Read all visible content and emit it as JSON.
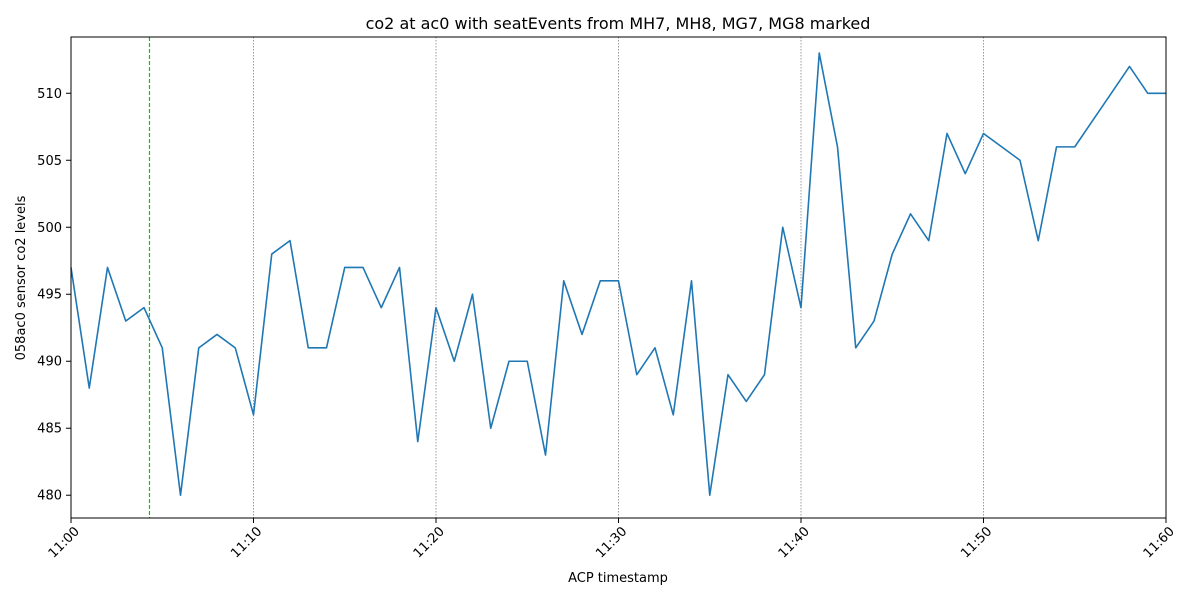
{
  "chart_data": {
    "type": "line",
    "title": "co2 at ac0 with seatEvents from MH7, MH8, MG7, MG8 marked",
    "xlabel": "ACP timestamp",
    "ylabel": "058ac0 sensor co2 levels",
    "xlim": [
      "11:00",
      "11:60"
    ],
    "ylim": [
      478.3,
      514.2
    ],
    "x_ticks": [
      "11:00",
      "11:10",
      "11:20",
      "11:30",
      "11:40",
      "11:50",
      "11:60"
    ],
    "y_ticks": [
      480,
      485,
      490,
      495,
      500,
      505,
      510
    ],
    "grid": "vertical dotted lines at x ticks",
    "series": [
      {
        "color": "#1f77b4",
        "x": [
          "11:00",
          "11:01",
          "11:02",
          "11:03",
          "11:04",
          "11:05",
          "11:06",
          "11:07",
          "11:08",
          "11:09",
          "11:10",
          "11:11",
          "11:12",
          "11:13",
          "11:14",
          "11:15",
          "11:16",
          "11:17",
          "11:18",
          "11:19",
          "11:20",
          "11:21",
          "11:22",
          "11:23",
          "11:24",
          "11:25",
          "11:26",
          "11:27",
          "11:28",
          "11:29",
          "11:30",
          "11:31",
          "11:32",
          "11:33",
          "11:34",
          "11:35",
          "11:36",
          "11:37",
          "11:38",
          "11:39",
          "11:40",
          "11:41",
          "11:42",
          "11:43",
          "11:44",
          "11:45",
          "11:46",
          "11:47",
          "11:48",
          "11:49",
          "11:50",
          "11:51",
          "11:52",
          "11:53",
          "11:54",
          "11:55",
          "11:56",
          "11:57",
          "11:58",
          "11:59",
          "11:60"
        ],
        "y": [
          497,
          488,
          497,
          493,
          494,
          491,
          480,
          491,
          492,
          491,
          486,
          498,
          499,
          491,
          491,
          497,
          497,
          494,
          497,
          484,
          494,
          490,
          495,
          485,
          490,
          490,
          483,
          496,
          492,
          496,
          496,
          489,
          491,
          486,
          496,
          480,
          489,
          487,
          489,
          500,
          494,
          513,
          506,
          491,
          493,
          498,
          501,
          499,
          507,
          504,
          507,
          506,
          505,
          499,
          506,
          506,
          508,
          510,
          512,
          510,
          510
        ]
      }
    ],
    "vlines": [
      {
        "x": "11:04.3",
        "color": "#00cc00",
        "style": "dashed"
      }
    ]
  }
}
